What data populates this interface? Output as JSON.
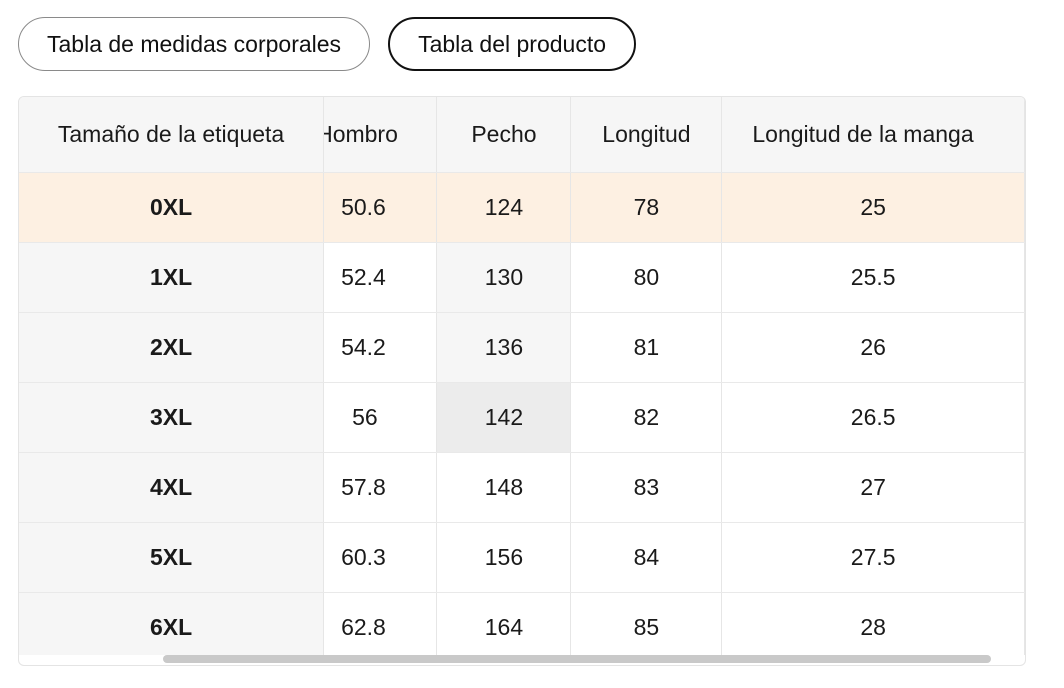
{
  "tabs": [
    {
      "label": "Tabla de medidas corporales",
      "active": false
    },
    {
      "label": "Tabla del producto",
      "active": true
    }
  ],
  "table": {
    "headers": [
      "Tamaño de la etiqueta",
      "Hombro",
      "Pecho",
      "Longitud",
      "Longitud de la manga"
    ],
    "rows": [
      [
        "0XL",
        "50.6",
        "124",
        "78",
        "25"
      ],
      [
        "1XL",
        "52.4",
        "130",
        "80",
        "25.5"
      ],
      [
        "2XL",
        "54.2",
        "136",
        "81",
        "26"
      ],
      [
        "3XL",
        "56",
        "142",
        "82",
        "26.5"
      ],
      [
        "4XL",
        "57.8",
        "148",
        "83",
        "27"
      ],
      [
        "5XL",
        "60.3",
        "156",
        "84",
        "27.5"
      ],
      [
        "6XL",
        "62.8",
        "164",
        "85",
        "28"
      ]
    ]
  },
  "colors": {
    "highlight_row": "#fdf0e2",
    "header_bg": "#f6f6f6",
    "hover_cell": "#ececec"
  }
}
